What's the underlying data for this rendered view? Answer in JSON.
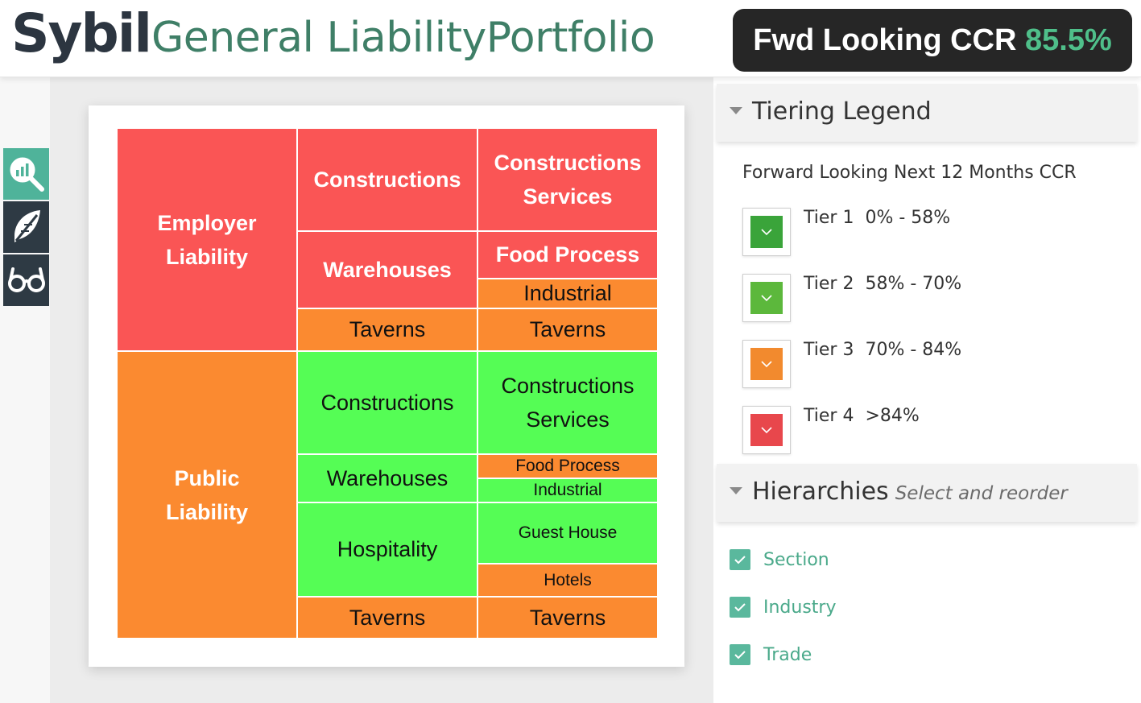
{
  "header": {
    "brand": "Sybil",
    "title": "General LiabilityPortfolio",
    "ccr_label": "Fwd Looking CCR",
    "ccr_value": "85.5%"
  },
  "left_rail": {
    "buttons": [
      {
        "icon": "analytics-search-icon"
      },
      {
        "icon": "feather-pen-icon"
      },
      {
        "icon": "glasses-icon"
      }
    ]
  },
  "treemap": {
    "sections": [
      "Employer\nLiability",
      "Public\nLiability"
    ],
    "industries": {
      "el_constructions": "Constructions",
      "el_warehouses": "Warehouses",
      "el_taverns": "Taverns",
      "pl_constructions": "Constructions",
      "pl_warehouses": "Warehouses",
      "pl_hospitality": "Hospitality",
      "pl_taverns": "Taverns"
    },
    "trades": {
      "el_constructions_services": "Constructions\nServices",
      "el_food_process": "Food Process",
      "el_industrial": "Industrial",
      "el_taverns": "Taverns",
      "pl_constructions_services": "Constructions\nServices",
      "pl_food_process": "Food Process",
      "pl_industrial": "Industrial",
      "pl_guest_house": "Guest House",
      "pl_hotels": "Hotels",
      "pl_taverns": "Taverns"
    }
  },
  "legend": {
    "title": "Tiering Legend",
    "subtitle": "Forward Looking Next 12 Months CCR",
    "tiers": [
      {
        "name": "Tier 1",
        "range": "0% - 58%",
        "color": "#3aa43a"
      },
      {
        "name": "Tier 2",
        "range": "58% - 70%",
        "color": "#5cb83c"
      },
      {
        "name": "Tier 3",
        "range": "70% - 84%",
        "color": "#f28a2e"
      },
      {
        "name": "Tier 4",
        "range": ">84%",
        "color": "#e8474c"
      }
    ]
  },
  "hierarchies": {
    "title": "Hierarchies",
    "subtitle": "Select and reorder",
    "items": [
      "Section",
      "Industry",
      "Trade"
    ]
  },
  "colors": {
    "tier_red": "#fa5555",
    "tier_orange": "#fb8a30",
    "tier_green": "#55fd55",
    "brand_green": "#3f7f67",
    "accent_teal": "#4fb39a"
  }
}
